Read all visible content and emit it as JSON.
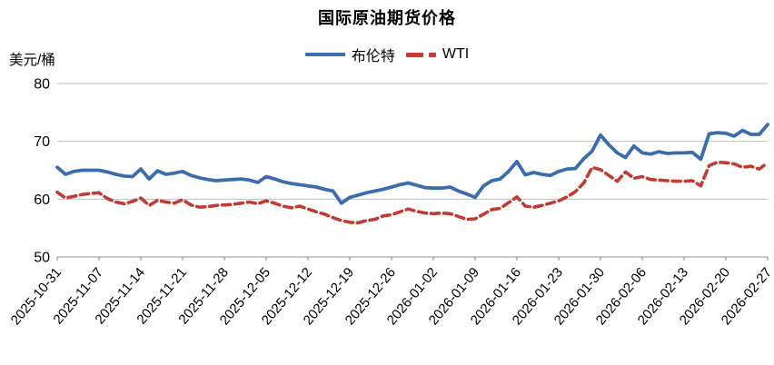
{
  "title": "国际原油期货价格",
  "y_axis": {
    "unit_label": "美元/桶",
    "tick_labels": [
      "80",
      "70",
      "60",
      "50"
    ]
  },
  "legend": {
    "series1_label": "布伦特",
    "series2_label": "WTI"
  },
  "colors": {
    "brent": "#3B6DAE",
    "wti": "#C23B33",
    "gridline": "#bfbfbf",
    "axis": "#9a9a9a",
    "tick": "#808080",
    "text": "#000000"
  },
  "chart_data": {
    "type": "line",
    "title": "国际原油期货价格",
    "ylabel": "美元/桶",
    "ylim": [
      50,
      80
    ],
    "yticks": [
      50,
      60,
      70,
      80
    ],
    "grid": "horizontal",
    "legend_position": "top-center",
    "n_points": 86,
    "points_per_tick": 5,
    "x_tick_labels": [
      "2025-10-31",
      "2025-11-07",
      "2025-11-14",
      "2025-11-21",
      "2025-11-28",
      "2025-12-05",
      "2025-12-12",
      "2025-12-19",
      "2025-12-26",
      "2026-01-02",
      "2026-01-09",
      "2026-01-16",
      "2026-01-23",
      "2026-01-30",
      "2026-02-06",
      "2026-02-13",
      "2026-02-20",
      "2026-02-27"
    ],
    "series": [
      {
        "name": "布伦特",
        "color": "#3B6DAE",
        "line_style": "solid",
        "values": [
          65.5,
          64.3,
          64.8,
          65.0,
          65.0,
          65.0,
          64.7,
          64.3,
          64.0,
          63.9,
          65.2,
          63.5,
          64.9,
          64.3,
          64.5,
          64.8,
          64.1,
          63.7,
          63.4,
          63.2,
          63.3,
          63.4,
          63.5,
          63.3,
          62.9,
          63.9,
          63.5,
          63.0,
          62.7,
          62.5,
          62.3,
          62.1,
          61.7,
          61.4,
          59.3,
          60.3,
          60.7,
          61.1,
          61.4,
          61.7,
          62.1,
          62.5,
          62.8,
          62.4,
          62.0,
          61.9,
          61.9,
          62.1,
          61.4,
          60.9,
          60.3,
          62.3,
          63.2,
          63.5,
          64.8,
          66.5,
          64.2,
          64.6,
          64.3,
          64.1,
          64.8,
          65.2,
          65.3,
          67.0,
          68.3,
          71.1,
          69.4,
          68.0,
          67.2,
          69.2,
          68.0,
          67.8,
          68.2,
          67.9,
          68.0,
          68.0,
          68.1,
          66.9,
          71.3,
          71.5,
          71.4,
          70.9,
          71.9,
          71.2,
          71.2,
          72.9
        ]
      },
      {
        "name": "WTI",
        "color": "#C23B33",
        "line_style": "dashed",
        "values": [
          61.2,
          60.2,
          60.5,
          60.8,
          61.0,
          61.1,
          60.1,
          59.5,
          59.2,
          59.6,
          60.2,
          58.9,
          59.8,
          59.5,
          59.3,
          59.9,
          59.0,
          58.6,
          58.7,
          58.9,
          59.0,
          59.1,
          59.3,
          59.5,
          59.2,
          59.7,
          59.3,
          58.8,
          58.5,
          58.8,
          58.3,
          57.8,
          57.4,
          56.8,
          56.3,
          56.0,
          55.9,
          56.3,
          56.5,
          57.1,
          57.3,
          57.8,
          58.3,
          57.9,
          57.6,
          57.5,
          57.6,
          57.5,
          57.0,
          56.5,
          56.6,
          57.4,
          58.2,
          58.4,
          59.4,
          60.4,
          58.8,
          58.6,
          58.9,
          59.3,
          59.7,
          60.4,
          61.3,
          62.8,
          65.5,
          65.1,
          64.1,
          63.1,
          64.7,
          63.6,
          63.9,
          63.4,
          63.3,
          63.2,
          63.1,
          63.1,
          63.2,
          62.3,
          65.8,
          66.4,
          66.3,
          66.1,
          65.5,
          65.7,
          65.2,
          66.3
        ]
      }
    ]
  }
}
